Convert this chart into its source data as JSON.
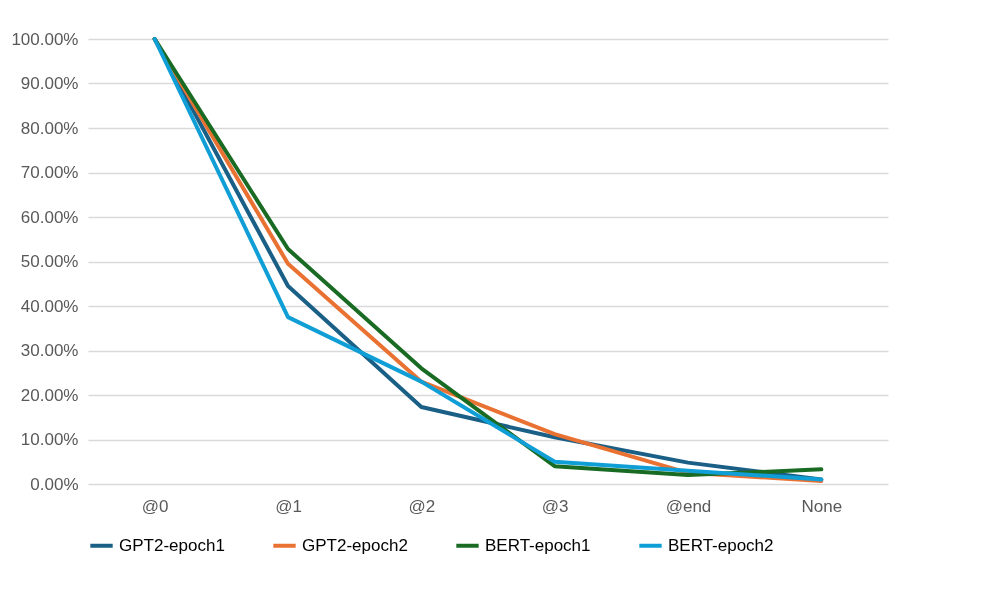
{
  "chart_data": {
    "type": "line",
    "categories": [
      "@0",
      "@1",
      "@2",
      "@3",
      "@end",
      "None"
    ],
    "series": [
      {
        "name": "GPT2-epoch1",
        "color": "#1a5f86",
        "values": [
          100,
          44.5,
          17.3,
          10.5,
          4.8,
          1.0
        ]
      },
      {
        "name": "GPT2-epoch2",
        "color": "#e97132",
        "values": [
          100,
          49.5,
          23,
          11.2,
          2.5,
          0.7
        ]
      },
      {
        "name": "BERT-epoch1",
        "color": "#196b24",
        "values": [
          100,
          52.8,
          26,
          4,
          2,
          3.3
        ]
      },
      {
        "name": "BERT-epoch2",
        "color": "#0f9ed5",
        "values": [
          100,
          37.5,
          23,
          5,
          3,
          1.0
        ]
      }
    ],
    "ylim": [
      0,
      100
    ],
    "yticks": [
      {
        "value": 0,
        "label": "0.00%"
      },
      {
        "value": 10,
        "label": "10.00%"
      },
      {
        "value": 20,
        "label": "20.00%"
      },
      {
        "value": 30,
        "label": "30.00%"
      },
      {
        "value": 40,
        "label": "40.00%"
      },
      {
        "value": 50,
        "label": "50.00%"
      },
      {
        "value": 60,
        "label": "60.00%"
      },
      {
        "value": 70,
        "label": "70.00%"
      },
      {
        "value": 80,
        "label": "80.00%"
      },
      {
        "value": 90,
        "label": "90.00%"
      },
      {
        "value": 100,
        "label": "100.00%"
      }
    ],
    "grid": "y",
    "legend": "bottom",
    "marker": "none",
    "line_style": "solid"
  }
}
